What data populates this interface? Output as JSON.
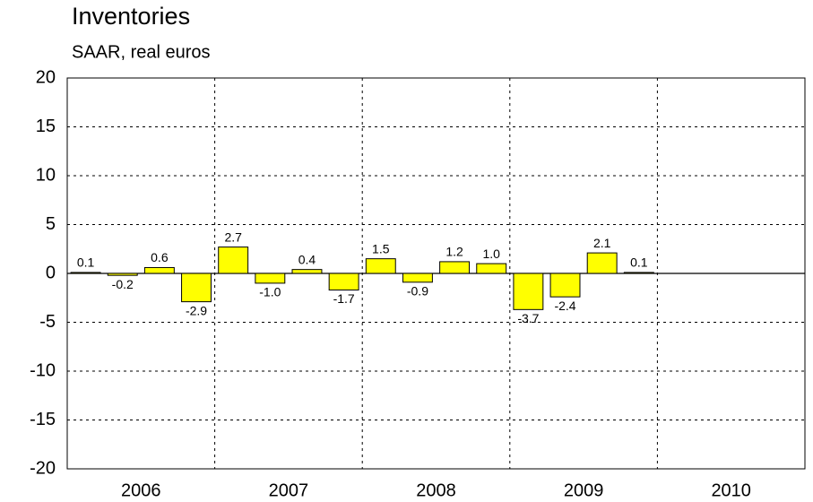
{
  "chart_data": {
    "type": "bar",
    "title": "Inventories",
    "subtitle": "SAAR, real euros",
    "years": [
      "2006",
      "2007",
      "2008",
      "2009",
      "2010"
    ],
    "values": [
      0.1,
      -0.2,
      0.6,
      -2.9,
      2.7,
      -1.0,
      0.4,
      -1.7,
      1.5,
      -0.9,
      1.2,
      1.0,
      -3.7,
      -2.4,
      2.1,
      0.1,
      null,
      null,
      null,
      null
    ],
    "value_labels": [
      "0.1",
      "-0.2",
      "0.6",
      "-2.9",
      "2.7",
      "-1.0",
      "0.4",
      "-1.7",
      "1.5",
      "-0.9",
      "1.2",
      "1.0",
      "-3.7",
      "-2.4",
      "2.1",
      "0.1",
      null,
      null,
      null,
      null
    ],
    "color": "#ffff00",
    "ylim": [
      -20,
      20
    ],
    "yticks": [
      20,
      15,
      10,
      5,
      0,
      -5,
      -10,
      -15,
      -20
    ],
    "grid": true
  }
}
